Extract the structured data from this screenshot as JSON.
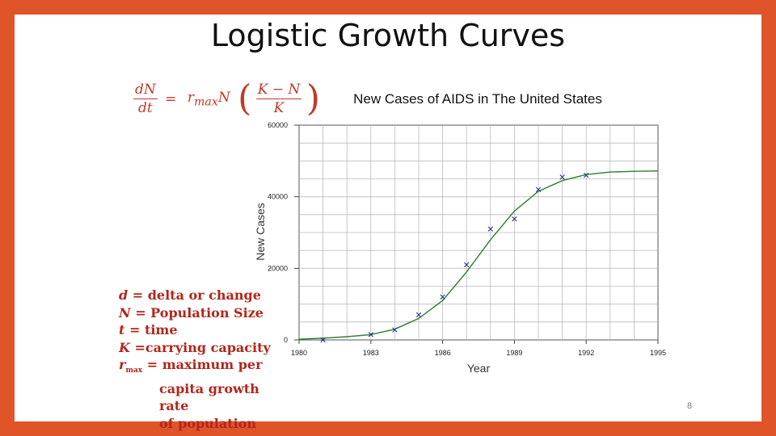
{
  "slide": {
    "title": "Logistic Growth Curves",
    "formula": {
      "lhs_num": "dN",
      "lhs_den": "dt",
      "eq": "=",
      "rhs_coef": "r",
      "rhs_sub": "max",
      "rhs_var": "N",
      "frac_num": "K − N",
      "frac_den": "K"
    },
    "definitions": [
      {
        "sym": "d",
        "text": " = delta or change"
      },
      {
        "sym": "N",
        "text": " = Population Size"
      },
      {
        "sym": "t",
        "text": " = time"
      },
      {
        "sym": "K",
        "text": " =carrying capacity"
      },
      {
        "sym": "r",
        "sub": "max",
        "text": " = maximum per"
      }
    ],
    "definition_cont": [
      "capita growth rate",
      "of population"
    ],
    "page_number": "8",
    "colors": {
      "border": "#e0542a",
      "accent": "#b1261b",
      "curve": "#2e7d32",
      "marker": "#1f3a93"
    }
  },
  "chart_data": {
    "type": "scatter",
    "title": "New Cases of AIDS in The United States",
    "xlabel": "Year",
    "ylabel": "New Cases",
    "xlim": [
      1980,
      1995
    ],
    "ylim": [
      0,
      60000
    ],
    "xticks": [
      "1980",
      "1983",
      "1986",
      "1989",
      "1992",
      "1995"
    ],
    "yticks": [
      "0",
      "20000",
      "40000",
      "60000"
    ],
    "grid": true,
    "series": [
      {
        "kind": "points",
        "x": [
          1981,
          1983,
          1984,
          1985,
          1986,
          1987,
          1988,
          1989,
          1990,
          1991,
          1992
        ],
        "y": [
          0,
          1500,
          2800,
          7000,
          12000,
          21000,
          31000,
          33800,
          42000,
          45500,
          46000
        ]
      },
      {
        "kind": "logistic-fit",
        "x": [
          1980,
          1981,
          1982,
          1983,
          1984,
          1985,
          1986,
          1987,
          1988,
          1989,
          1990,
          1991,
          1992,
          1993,
          1994,
          1995
        ],
        "y": [
          200,
          500,
          900,
          1500,
          3000,
          6000,
          11000,
          19000,
          28000,
          36000,
          41500,
          44500,
          46200,
          46900,
          47100,
          47200
        ]
      }
    ]
  }
}
